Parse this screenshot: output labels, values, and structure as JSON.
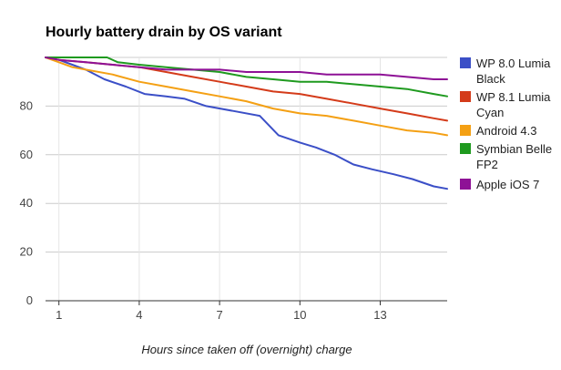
{
  "chart_data": {
    "type": "line",
    "title": "Hourly battery drain by OS variant",
    "xlabel": "Hours since taken off (overnight) charge",
    "ylabel": "",
    "xlim": [
      0.5,
      15.5
    ],
    "ylim": [
      0,
      100
    ],
    "x_ticks": [
      1,
      4,
      7,
      10,
      13
    ],
    "y_ticks": [
      0,
      20,
      40,
      60,
      80
    ],
    "grid": true,
    "legend_position": "right",
    "series": [
      {
        "name": "WP 8.0 Lumia Black",
        "color": "#3b4fc7",
        "x": [
          0.5,
          1,
          1.5,
          2,
          2.7,
          3.5,
          4.2,
          5,
          5.7,
          6.5,
          7.5,
          8.5,
          9.2,
          10,
          10.6,
          11.3,
          12,
          12.7,
          13.5,
          14.2,
          15,
          15.5
        ],
        "y": [
          100,
          99,
          97,
          95,
          91,
          88,
          85,
          84,
          83,
          80,
          78,
          76,
          68,
          65,
          63,
          60,
          56,
          54,
          52,
          50,
          47,
          46
        ]
      },
      {
        "name": "WP 8.1 Lumia Cyan",
        "color": "#d43b1a",
        "x": [
          0.5,
          1,
          2,
          3,
          4,
          5,
          6,
          7,
          8,
          9,
          10,
          11,
          12,
          13,
          14,
          15,
          15.5
        ],
        "y": [
          100,
          99,
          98,
          97,
          96,
          94,
          92,
          90,
          88,
          86,
          85,
          83,
          81,
          79,
          77,
          75,
          74
        ]
      },
      {
        "name": "Android 4.3",
        "color": "#f4a014",
        "x": [
          0.5,
          1,
          1.5,
          2,
          3,
          4,
          5,
          6,
          7,
          8,
          9,
          10,
          11,
          12,
          13,
          14,
          15,
          15.5
        ],
        "y": [
          100,
          98,
          96,
          95,
          93,
          90,
          88,
          86,
          84,
          82,
          79,
          77,
          76,
          74,
          72,
          70,
          69,
          68
        ]
      },
      {
        "name": "Symbian Belle FP2",
        "color": "#1f9a1f",
        "x": [
          0.5,
          1,
          2,
          2.8,
          3.2,
          4,
          5,
          6,
          7,
          8,
          9,
          10,
          11,
          12,
          13,
          14,
          15,
          15.5
        ],
        "y": [
          100,
          100,
          100,
          100,
          98,
          97,
          96,
          95,
          94,
          92,
          91,
          90,
          90,
          89,
          88,
          87,
          85,
          84
        ]
      },
      {
        "name": "Apple iOS 7",
        "color": "#8e1196",
        "x": [
          0.5,
          1,
          2,
          3,
          4,
          5,
          6,
          7,
          8,
          9,
          10,
          11,
          12,
          13,
          14,
          15,
          15.5
        ],
        "y": [
          100,
          99,
          98,
          97,
          96,
          95,
          95,
          95,
          94,
          94,
          94,
          93,
          93,
          93,
          92,
          91,
          91
        ]
      }
    ]
  }
}
